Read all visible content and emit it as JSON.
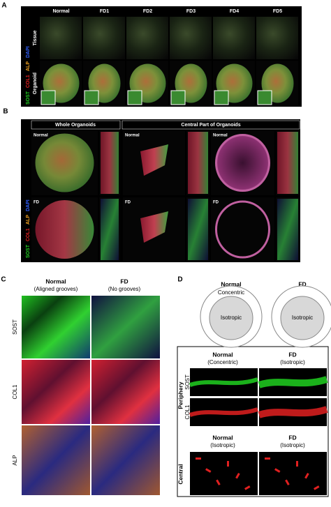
{
  "panel_a": {
    "label": "A",
    "stains": [
      "SOST",
      "COL1",
      "ALP",
      "DAPI"
    ],
    "columns": [
      "Normal",
      "FD1",
      "FD2",
      "FD3",
      "FD4",
      "FD5"
    ],
    "rows": [
      "Tissue",
      "Organoid"
    ]
  },
  "panel_b": {
    "label": "B",
    "stains": [
      "SOST",
      "COL1",
      "ALP",
      "DAPI"
    ],
    "headers": [
      "Whole Organoids",
      "Central Part of Organoids"
    ],
    "image_labels": [
      "Normal",
      "Normal",
      "Normal",
      "FD",
      "FD",
      "FD"
    ]
  },
  "panel_c": {
    "label": "C",
    "columns": [
      {
        "title": "Normal",
        "subtitle": "(Aligned grooves)"
      },
      {
        "title": "FD",
        "subtitle": "(No grooves)"
      }
    ],
    "rows": [
      "SOST",
      "COL1",
      "ALP"
    ]
  },
  "panel_d": {
    "label": "D",
    "diagrams": [
      {
        "title": "Normal",
        "outer": "Concentric",
        "inner": "Isotropic"
      },
      {
        "title": "FD",
        "inner": "Isotropic"
      }
    ],
    "periphery": {
      "label": "Periphery",
      "columns": [
        {
          "title": "Normal",
          "subtitle": "(Concentric)"
        },
        {
          "title": "FD",
          "subtitle": "(Isotropic)"
        }
      ],
      "rows": [
        "SOST",
        "COL1"
      ]
    },
    "central": {
      "label": "Central",
      "columns": [
        {
          "title": "Normal",
          "subtitle": "(Isotropic)"
        },
        {
          "title": "FD",
          "subtitle": "(Isotropic)"
        }
      ]
    }
  }
}
